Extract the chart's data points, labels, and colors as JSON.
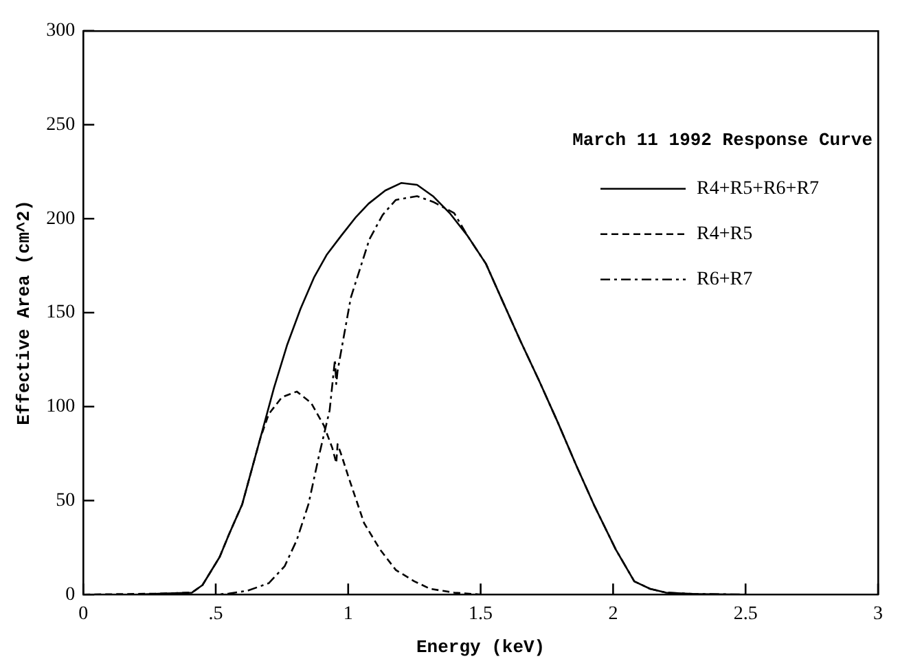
{
  "chart_data": {
    "type": "line",
    "xlabel": "Energy (keV)",
    "ylabel": "Effective Area (cm^2)",
    "legend_title": "March 11 1992 Response Curve",
    "legend": "top right",
    "grid": false,
    "marker": "none",
    "xlim": [
      0,
      3
    ],
    "ylim": [
      0,
      300
    ],
    "xticks": [
      0,
      {
        "value": 0.5,
        "label": ".5"
      },
      1,
      1.5,
      2,
      2.5,
      3
    ],
    "yticks": [
      0,
      50,
      100,
      150,
      200,
      250,
      300
    ],
    "series": [
      {
        "name": "R4+R5+R6+R7",
        "color": "#000000",
        "line_style": "solid",
        "x": [
          0,
          0.2,
          0.3,
          0.41,
          0.45,
          0.515,
          0.55,
          0.6,
          0.633,
          0.668,
          0.72,
          0.77,
          0.82,
          0.872,
          0.92,
          0.974,
          1.03,
          1.077,
          1.14,
          1.2,
          1.26,
          1.32,
          1.383,
          1.45,
          1.52,
          1.58,
          1.65,
          1.72,
          1.79,
          1.86,
          1.93,
          2.01,
          2.08,
          2.14,
          2.2,
          2.3,
          2.5,
          3
        ],
        "values": [
          0,
          0,
          0.5,
          1,
          5,
          20,
          32,
          48,
          65,
          83,
          110,
          133,
          152,
          169,
          181,
          191,
          201,
          208,
          215,
          219,
          218,
          212,
          203,
          191,
          176,
          157,
          135,
          114,
          92,
          69,
          47,
          24,
          7,
          3,
          1,
          0.3,
          0,
          0
        ]
      },
      {
        "name": "R4+R5",
        "color": "#000000",
        "line_style": "dashed",
        "x": [
          0,
          0.3,
          0.41,
          0.45,
          0.515,
          0.55,
          0.6,
          0.633,
          0.668,
          0.7,
          0.75,
          0.806,
          0.86,
          0.908,
          0.94,
          0.955,
          0.96,
          0.975,
          1.0,
          1.06,
          1.12,
          1.18,
          1.25,
          1.31,
          1.4,
          1.5,
          2,
          3
        ],
        "values": [
          0,
          0.5,
          1,
          5,
          20,
          32,
          48,
          65,
          83,
          96,
          105,
          108,
          102,
          90,
          78,
          70,
          80,
          74,
          63,
          38,
          24,
          13,
          7,
          3,
          1,
          0,
          0,
          0
        ]
      },
      {
        "name": "R6+R7",
        "color": "#000000",
        "line_style": "dashed-dotted",
        "x": [
          0,
          0.5,
          0.55,
          0.62,
          0.7,
          0.76,
          0.806,
          0.85,
          0.89,
          0.93,
          0.95,
          0.955,
          0.96,
          1.01,
          1.08,
          1.13,
          1.18,
          1.26,
          1.32,
          1.4,
          1.45,
          1.52,
          1.58,
          1.65,
          1.72,
          1.79,
          1.86,
          1.93,
          2.01,
          2.08,
          2.14,
          2.2,
          2.3,
          2.5,
          3
        ],
        "values": [
          0,
          0,
          0.5,
          2,
          6,
          15,
          29,
          48,
          74,
          98,
          125,
          112,
          119,
          158,
          189,
          202,
          210,
          212,
          209,
          203,
          191,
          176,
          157,
          135,
          114,
          92,
          69,
          47,
          24,
          7,
          3,
          1,
          0.3,
          0,
          0
        ]
      }
    ]
  }
}
